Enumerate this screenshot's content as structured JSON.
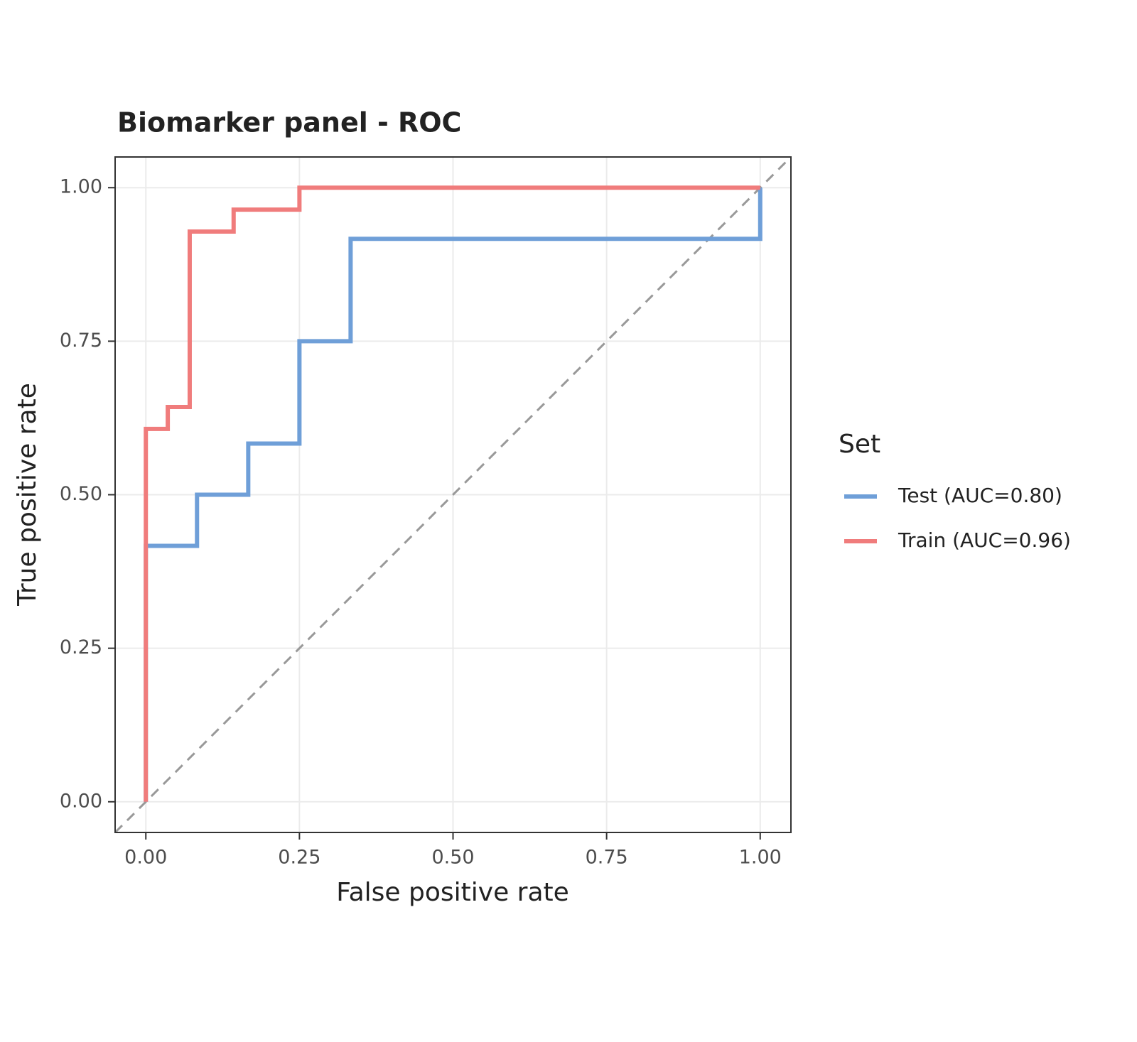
{
  "chart_data": {
    "type": "line",
    "title": "Biomarker panel - ROC",
    "x_label": "False positive rate",
    "y_label": "True positive rate",
    "legend_title": "Set",
    "legend": "right",
    "grid": true,
    "xlim": [
      -0.05,
      1.05
    ],
    "ylim": [
      -0.05,
      1.05
    ],
    "xticks": [
      {
        "value": 0,
        "label": "0.00"
      },
      {
        "value": 0.25,
        "label": "0.25"
      },
      {
        "value": 0.5,
        "label": "0.50"
      },
      {
        "value": 0.75,
        "label": "0.75"
      },
      {
        "value": 1,
        "label": "1.00"
      }
    ],
    "yticks": [
      {
        "value": 0,
        "label": "0.00"
      },
      {
        "value": 0.25,
        "label": "0.25"
      },
      {
        "value": 0.5,
        "label": "0.50"
      },
      {
        "value": 0.75,
        "label": "0.75"
      },
      {
        "value": 1,
        "label": "1.00"
      }
    ],
    "series": [
      {
        "name": "Test (AUC=0.80)",
        "color": "#6f9fd8",
        "x": [
          0,
          0,
          0.0833,
          0.0833,
          0.1667,
          0.1667,
          0.25,
          0.25,
          0.3333,
          0.3333,
          1,
          1
        ],
        "values": [
          0,
          0.4167,
          0.4167,
          0.5,
          0.5,
          0.5833,
          0.5833,
          0.75,
          0.75,
          0.9167,
          0.9167,
          1
        ]
      },
      {
        "name": "Train (AUC=0.96)",
        "color": "#f07c7c",
        "x": [
          0,
          0,
          0.0357,
          0.0357,
          0.0714,
          0.0714,
          0.1429,
          0.1429,
          0.25,
          0.25,
          1
        ],
        "values": [
          0,
          0.6071,
          0.6071,
          0.6429,
          0.6429,
          0.9286,
          0.9286,
          0.9643,
          0.9643,
          1,
          1
        ]
      }
    ]
  }
}
